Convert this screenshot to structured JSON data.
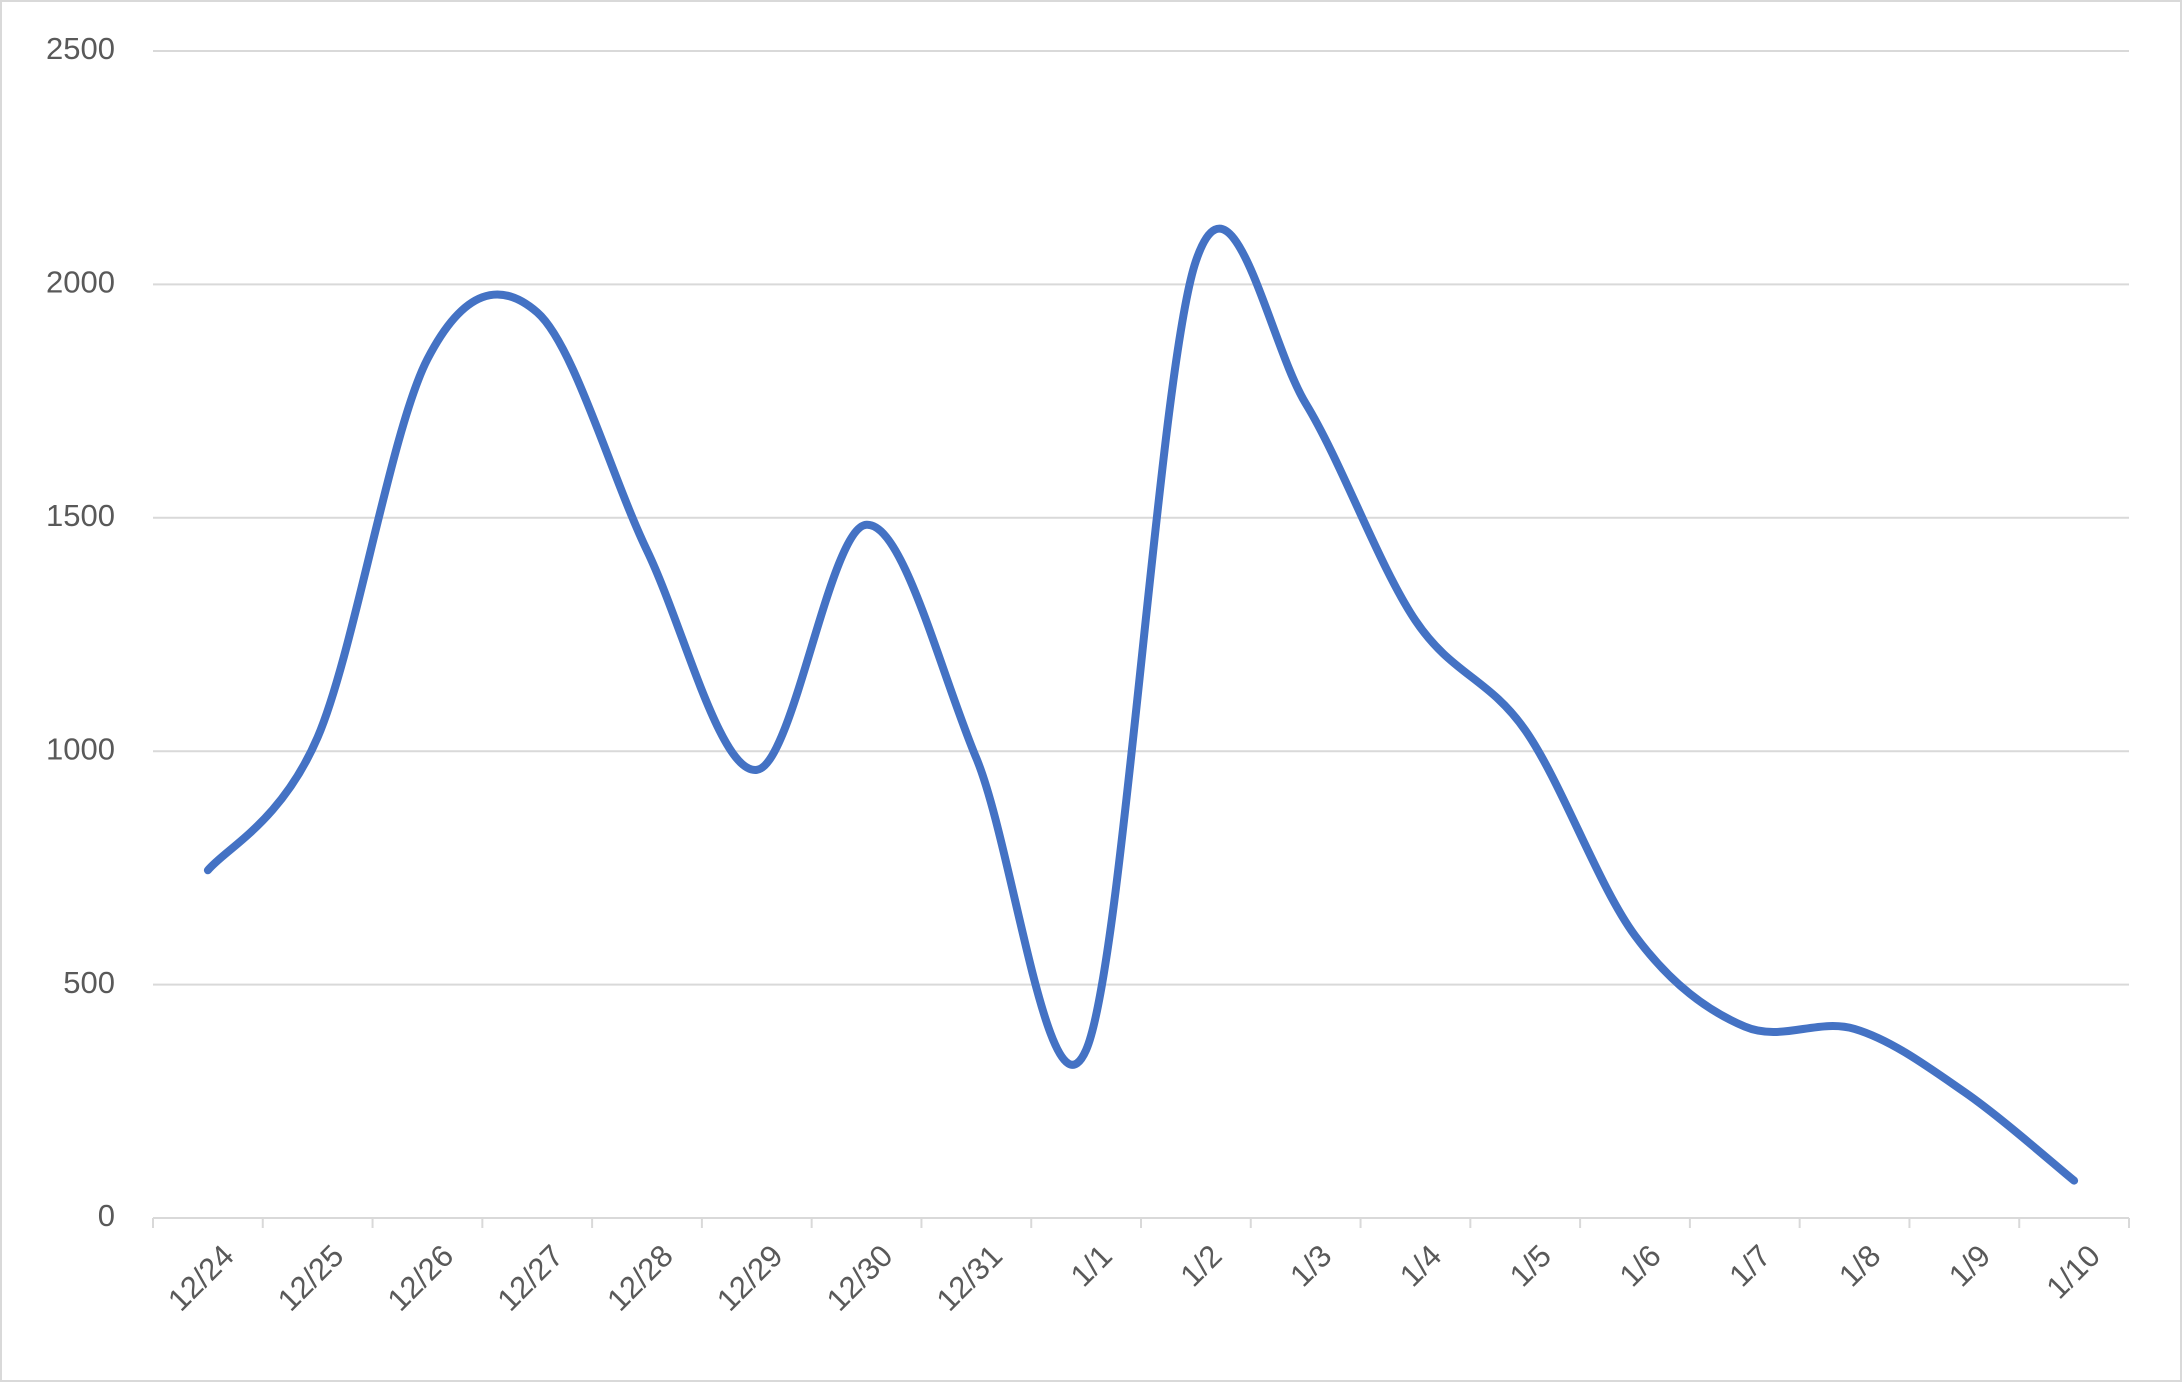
{
  "chart_data": {
    "type": "line",
    "categories": [
      "12/24",
      "12/25",
      "12/26",
      "12/27",
      "12/28",
      "12/29",
      "12/30",
      "12/31",
      "1/1",
      "1/2",
      "1/3",
      "1/4",
      "1/5",
      "1/6",
      "1/7",
      "1/8",
      "1/9",
      "1/10"
    ],
    "series": [
      {
        "color": "#4472c4",
        "values": [
          745,
          1030,
          1840,
          1940,
          1430,
          960,
          1485,
          985,
          360,
          2050,
          1745,
          1280,
          1045,
          605,
          410,
          405,
          270,
          80
        ]
      }
    ],
    "ylim": [
      0,
      2500
    ],
    "yticks": [
      0,
      500,
      1000,
      1500,
      2000,
      2500
    ],
    "grid": true,
    "smooth": true
  }
}
